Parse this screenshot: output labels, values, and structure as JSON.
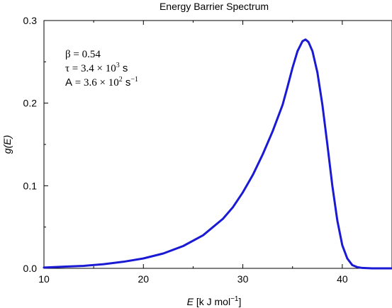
{
  "chart_data": {
    "type": "line",
    "title": "Energy Barrier Spectrum",
    "xlabel": {
      "var": "E",
      "rest": " [k J mol",
      "sup": "−1",
      "close": "]"
    },
    "ylabel": "g(E)",
    "xlim": [
      10,
      45
    ],
    "ylim": [
      0,
      0.3
    ],
    "x_ticks": [
      {
        "value": 10,
        "label": "10"
      },
      {
        "value": 20,
        "label": "20"
      },
      {
        "value": 30,
        "label": "30"
      },
      {
        "value": 40,
        "label": "40"
      }
    ],
    "x_minor_ticks": [
      15,
      25,
      35
    ],
    "y_ticks": [
      {
        "value": 0.0,
        "label": "0.0"
      },
      {
        "value": 0.1,
        "label": "0.1"
      },
      {
        "value": 0.2,
        "label": "0.2"
      },
      {
        "value": 0.3,
        "label": "0.3"
      }
    ],
    "y_minor_ticks": [
      0.05,
      0.15,
      0.25
    ],
    "grid": false,
    "series": [
      {
        "color": "#1a1ad4",
        "x": [
          10,
          12,
          14,
          16,
          18,
          20,
          22,
          24,
          26,
          28,
          29,
          30,
          31,
          32,
          33,
          34,
          34.5,
          35,
          35.5,
          36,
          36.3,
          36.6,
          37,
          37.5,
          38,
          38.5,
          39,
          39.5,
          40,
          40.5,
          41,
          41.5,
          42,
          43,
          44,
          45
        ],
        "y": [
          0.001,
          0.002,
          0.003,
          0.005,
          0.008,
          0.012,
          0.018,
          0.027,
          0.04,
          0.06,
          0.074,
          0.092,
          0.113,
          0.138,
          0.166,
          0.198,
          0.22,
          0.243,
          0.263,
          0.275,
          0.277,
          0.274,
          0.263,
          0.237,
          0.198,
          0.15,
          0.1,
          0.058,
          0.028,
          0.012,
          0.004,
          0.0015,
          0.0005,
          0.0,
          0.0,
          0.0
        ]
      }
    ],
    "annotations": {
      "beta": {
        "symbol": "β",
        "eq": " = ",
        "value": "0.54"
      },
      "tau": {
        "symbol": "τ",
        "eq": " = ",
        "mantissa": "3.4 × 10",
        "exp": "3",
        "unit": " s"
      },
      "A": {
        "symbol": "A",
        "eq": " = ",
        "mantissa": "3.6 × 10",
        "exp": "2",
        "unit": " s",
        "unit_exp": "−1"
      }
    }
  }
}
